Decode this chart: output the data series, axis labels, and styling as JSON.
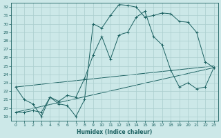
{
  "xlabel": "Humidex (Indice chaleur)",
  "bg_color": "#cce8e8",
  "grid_color": "#aacece",
  "line_color": "#1a6060",
  "xlim": [
    -0.5,
    23.5
  ],
  "ylim": [
    18.5,
    32.5
  ],
  "xticks": [
    0,
    1,
    2,
    3,
    4,
    5,
    6,
    7,
    8,
    9,
    10,
    11,
    12,
    13,
    14,
    15,
    16,
    17,
    18,
    19,
    20,
    21,
    22,
    23
  ],
  "yticks": [
    19,
    20,
    21,
    22,
    23,
    24,
    25,
    26,
    27,
    28,
    29,
    30,
    31,
    32
  ],
  "curve1_x": [
    0,
    1,
    2,
    3,
    4,
    5,
    6,
    7,
    8,
    9,
    10,
    11,
    12,
    13,
    14,
    15,
    16,
    17,
    18,
    19,
    20,
    21,
    22,
    23
  ],
  "curve1_y": [
    22.5,
    21.0,
    20.5,
    19.0,
    21.3,
    20.5,
    20.3,
    19.0,
    21.0,
    30.0,
    29.5,
    31.0,
    32.3,
    32.2,
    32.0,
    30.8,
    31.0,
    31.3,
    31.2,
    30.3,
    30.2,
    29.0,
    25.5,
    24.8
  ],
  "curve2_x": [
    0,
    1,
    2,
    3,
    4,
    5,
    6,
    7,
    8,
    9,
    10,
    11,
    12,
    13,
    14,
    15,
    16,
    17,
    18,
    19,
    20,
    21,
    22,
    23
  ],
  "curve2_y": [
    19.5,
    19.5,
    19.7,
    19.5,
    21.3,
    20.8,
    21.5,
    21.3,
    23.5,
    26.3,
    28.5,
    25.8,
    28.7,
    29.0,
    30.8,
    31.5,
    28.5,
    27.5,
    24.5,
    22.5,
    23.0,
    22.3,
    22.5,
    24.8
  ],
  "line1_x": [
    0,
    23
  ],
  "line1_y": [
    19.5,
    24.8
  ],
  "line2_x": [
    0,
    23
  ],
  "line2_y": [
    22.5,
    25.0
  ]
}
